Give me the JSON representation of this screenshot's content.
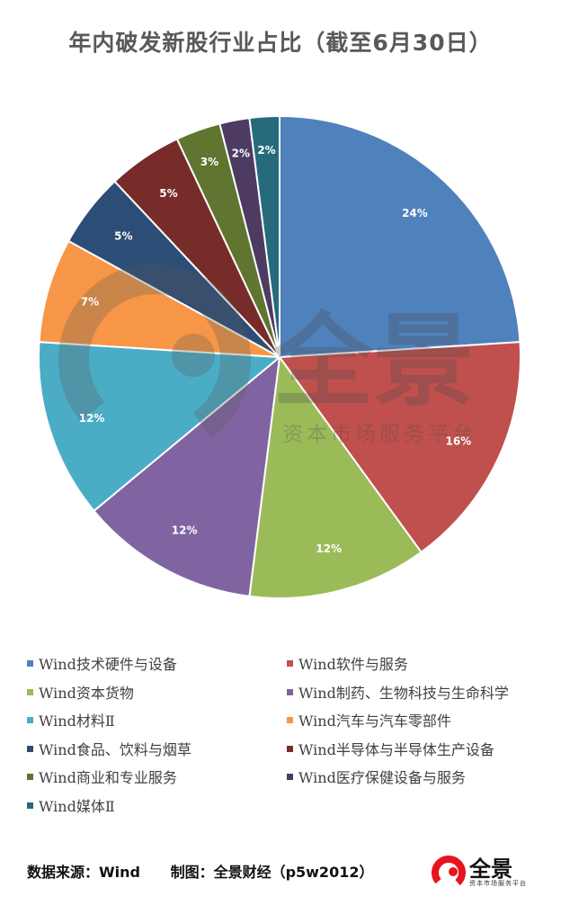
{
  "chart_data": {
    "type": "pie",
    "title": "年内破发新股行业占比（截至6月30日）",
    "slices": [
      {
        "label": "Wind技术硬件与设备",
        "value": 24,
        "display": "24%",
        "color": "#4F81BD"
      },
      {
        "label": "Wind软件与服务",
        "value": 16,
        "display": "16%",
        "color": "#C0504D"
      },
      {
        "label": "Wind资本货物",
        "value": 12,
        "display": "12%",
        "color": "#9BBB59"
      },
      {
        "label": "Wind制药、生物科技与生命科学",
        "value": 12,
        "display": "12%",
        "color": "#8064A2"
      },
      {
        "label": "Wind材料Ⅱ",
        "value": 12,
        "display": "12%",
        "color": "#4BACC6"
      },
      {
        "label": "Wind汽车与汽车零部件",
        "value": 7,
        "display": "7%",
        "color": "#F79646"
      },
      {
        "label": "Wind食品、饮料与烟草",
        "value": 5,
        "display": "5%",
        "color": "#2C4D75"
      },
      {
        "label": "Wind半导体与半导体生产设备",
        "value": 5,
        "display": "5%",
        "color": "#772C2A"
      },
      {
        "label": "Wind商业和专业服务",
        "value": 3,
        "display": "3%",
        "color": "#5F7530"
      },
      {
        "label": "Wind医疗保健设备与服务",
        "value": 2,
        "display": "2%",
        "color": "#4D3B62"
      },
      {
        "label": "Wind媒体Ⅱ",
        "value": 2,
        "display": "2%",
        "color": "#276A7C"
      }
    ],
    "legend_position": "bottom"
  },
  "footer": {
    "source": "数据来源：Wind",
    "maker": "制图：全景财经（p5w2012）"
  },
  "watermark": {
    "brand": "全景",
    "tagline": "资本市场服务平台"
  },
  "logo": {
    "brand": "全景",
    "tagline": "资本市场服务平台",
    "icon": "quanjing-logo-icon",
    "color": "#E8141B"
  }
}
